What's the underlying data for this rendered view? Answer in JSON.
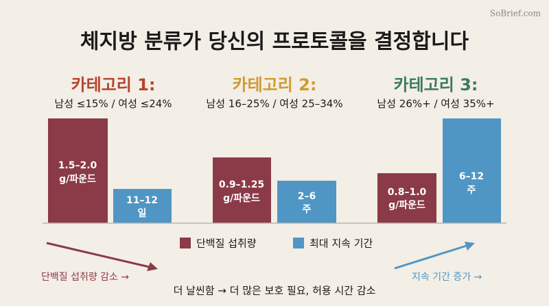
{
  "watermark": "SoBrief.com",
  "title": "체지방 분류가 당신의 프로토콜을 결정합니다",
  "groups": [
    {
      "title": "카테고리 1:",
      "subtitle": "남성 ≤15% / 여성 ≤24%",
      "protein": [
        "1.5–2.0",
        "g/파운드"
      ],
      "duration": [
        "11–12",
        "일"
      ]
    },
    {
      "title": "카테고리 2:",
      "subtitle": "남성 16–25% / 여성 25–34%",
      "protein": [
        "0.9–1.25",
        "g/파운드"
      ],
      "duration": [
        "2–6",
        "주"
      ]
    },
    {
      "title": "카테고리 3:",
      "subtitle": "남성 26%+ / 여성 35%+",
      "protein": [
        "0.8–1.0",
        "g/파운드"
      ],
      "duration": [
        "6–12",
        "주"
      ]
    }
  ],
  "legend": [
    "단백질 섭취량",
    "최대 지속 기간"
  ],
  "left_note": "단백질 섭취량 감소 →",
  "right_note": "지속 기간 증가 →",
  "footer": "더 날씬함 → 더 많은 보호 필요, 허용 시간 감소"
}
